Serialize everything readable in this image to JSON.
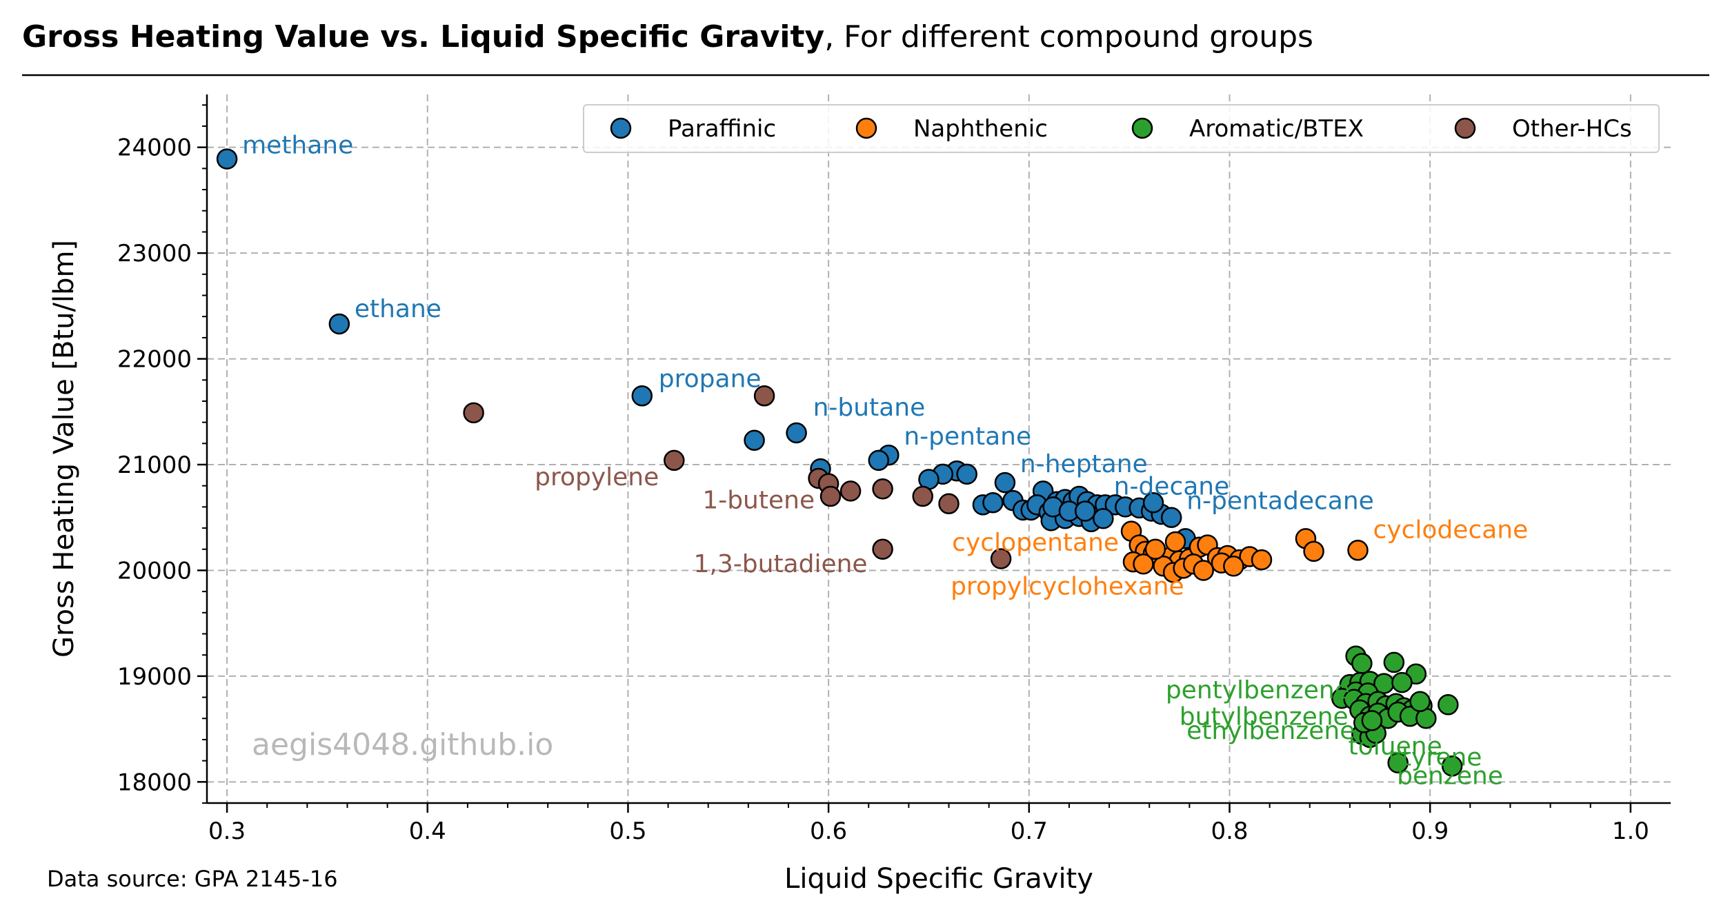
{
  "title": {
    "bold": "Gross Heating Value vs.  Liquid Specific Gravity",
    "normal": ", For different compound groups"
  },
  "source": "Data source: GPA 2145-16",
  "watermark": "aegis4048.github.io",
  "chart_data": {
    "type": "scatter",
    "xlabel": "Liquid Specific Gravity",
    "ylabel": "Gross Heating Value [Btu/lbm]",
    "xlim": [
      0.29,
      1.02
    ],
    "ylim": [
      17800,
      24500
    ],
    "xticks": [
      0.3,
      0.4,
      0.5,
      0.6,
      0.7,
      0.8,
      0.9,
      1.0
    ],
    "xtick_labels": [
      "0.3",
      "0.4",
      "0.5",
      "0.6",
      "0.7",
      "0.8",
      "0.9",
      "1.0"
    ],
    "yticks": [
      18000,
      19000,
      20000,
      21000,
      22000,
      23000,
      24000
    ],
    "ytick_labels": [
      "18000",
      "19000",
      "20000",
      "21000",
      "22000",
      "23000",
      "24000"
    ],
    "grid": true,
    "legend_position": "top-right",
    "series": [
      {
        "name": "Paraffinic",
        "color": "#1f77b4",
        "points": [
          [
            0.3,
            23890
          ],
          [
            0.356,
            22330
          ],
          [
            0.507,
            21650
          ],
          [
            0.584,
            21300
          ],
          [
            0.563,
            21230
          ],
          [
            0.63,
            21090
          ],
          [
            0.625,
            21040
          ],
          [
            0.596,
            20960
          ],
          [
            0.664,
            20940
          ],
          [
            0.657,
            20910
          ],
          [
            0.669,
            20910
          ],
          [
            0.65,
            20860
          ],
          [
            0.688,
            20830
          ],
          [
            0.707,
            20750
          ],
          [
            0.677,
            20620
          ],
          [
            0.682,
            20640
          ],
          [
            0.692,
            20660
          ],
          [
            0.697,
            20570
          ],
          [
            0.701,
            20570
          ],
          [
            0.704,
            20620
          ],
          [
            0.71,
            20550
          ],
          [
            0.714,
            20650
          ],
          [
            0.718,
            20670
          ],
          [
            0.722,
            20650
          ],
          [
            0.725,
            20700
          ],
          [
            0.729,
            20650
          ],
          [
            0.734,
            20620
          ],
          [
            0.738,
            20620
          ],
          [
            0.743,
            20620
          ],
          [
            0.748,
            20600
          ],
          [
            0.755,
            20590
          ],
          [
            0.761,
            20560
          ],
          [
            0.766,
            20530
          ],
          [
            0.771,
            20500
          ],
          [
            0.711,
            20470
          ],
          [
            0.718,
            20490
          ],
          [
            0.725,
            20510
          ],
          [
            0.731,
            20460
          ],
          [
            0.737,
            20490
          ],
          [
            0.762,
            20640
          ],
          [
            0.778,
            20300
          ],
          [
            0.712,
            20600
          ],
          [
            0.72,
            20560
          ],
          [
            0.728,
            20560
          ]
        ]
      },
      {
        "name": "Naphthenic",
        "color": "#ff7f0e",
        "points": [
          [
            0.751,
            20370
          ],
          [
            0.755,
            20240
          ],
          [
            0.758,
            20180
          ],
          [
            0.762,
            20160
          ],
          [
            0.766,
            20100
          ],
          [
            0.771,
            20130
          ],
          [
            0.775,
            20090
          ],
          [
            0.78,
            20110
          ],
          [
            0.785,
            20220
          ],
          [
            0.789,
            20240
          ],
          [
            0.794,
            20120
          ],
          [
            0.799,
            20140
          ],
          [
            0.805,
            20100
          ],
          [
            0.81,
            20130
          ],
          [
            0.816,
            20100
          ],
          [
            0.752,
            20080
          ],
          [
            0.757,
            20060
          ],
          [
            0.767,
            20040
          ],
          [
            0.772,
            19980
          ],
          [
            0.777,
            20020
          ],
          [
            0.782,
            20060
          ],
          [
            0.787,
            20000
          ],
          [
            0.796,
            20070
          ],
          [
            0.773,
            20270
          ],
          [
            0.763,
            20200
          ],
          [
            0.838,
            20300
          ],
          [
            0.842,
            20180
          ],
          [
            0.864,
            20190
          ],
          [
            0.802,
            20040
          ]
        ]
      },
      {
        "name": "Aromatic/BTEX",
        "color": "#2ca02c",
        "points": [
          [
            0.863,
            19190
          ],
          [
            0.866,
            19120
          ],
          [
            0.882,
            19130
          ],
          [
            0.893,
            19020
          ],
          [
            0.86,
            18920
          ],
          [
            0.865,
            18940
          ],
          [
            0.87,
            18950
          ],
          [
            0.877,
            18930
          ],
          [
            0.886,
            18940
          ],
          [
            0.863,
            18850
          ],
          [
            0.869,
            18840
          ],
          [
            0.856,
            18790
          ],
          [
            0.862,
            18780
          ],
          [
            0.868,
            18740
          ],
          [
            0.874,
            18760
          ],
          [
            0.878,
            18720
          ],
          [
            0.883,
            18740
          ],
          [
            0.887,
            18700
          ],
          [
            0.891,
            18680
          ],
          [
            0.896,
            18720
          ],
          [
            0.909,
            18730
          ],
          [
            0.865,
            18680
          ],
          [
            0.87,
            18620
          ],
          [
            0.874,
            18650
          ],
          [
            0.879,
            18600
          ],
          [
            0.884,
            18660
          ],
          [
            0.89,
            18620
          ],
          [
            0.898,
            18600
          ],
          [
            0.866,
            18450
          ],
          [
            0.87,
            18420
          ],
          [
            0.873,
            18460
          ],
          [
            0.867,
            18560
          ],
          [
            0.871,
            18580
          ],
          [
            0.884,
            18180
          ],
          [
            0.911,
            18150
          ],
          [
            0.895,
            18760
          ]
        ]
      },
      {
        "name": "Other-HCs",
        "color": "#8c564b",
        "points": [
          [
            0.423,
            21490
          ],
          [
            0.568,
            21650
          ],
          [
            0.523,
            21040
          ],
          [
            0.595,
            20870
          ],
          [
            0.6,
            20820
          ],
          [
            0.611,
            20750
          ],
          [
            0.627,
            20770
          ],
          [
            0.647,
            20700
          ],
          [
            0.66,
            20630
          ],
          [
            0.601,
            20700
          ],
          [
            0.627,
            20200
          ],
          [
            0.686,
            20110
          ]
        ]
      }
    ],
    "annotations": [
      {
        "text": "methane",
        "x": 0.3,
        "y": 23890,
        "series": "Paraffinic"
      },
      {
        "text": "ethane",
        "x": 0.356,
        "y": 22330,
        "series": "Paraffinic"
      },
      {
        "text": "propane",
        "x": 0.507,
        "y": 21650,
        "series": "Paraffinic"
      },
      {
        "text": "n-butane",
        "x": 0.584,
        "y": 21300,
        "series": "Paraffinic"
      },
      {
        "text": "n-pentane",
        "x": 0.63,
        "y": 21090,
        "series": "Paraffinic"
      },
      {
        "text": "n-heptane",
        "x": 0.688,
        "y": 20830,
        "series": "Paraffinic"
      },
      {
        "text": "n-decane",
        "x": 0.734,
        "y": 20620,
        "series": "Paraffinic"
      },
      {
        "text": "n-pentadecane",
        "x": 0.771,
        "y": 20500,
        "series": "Paraffinic"
      },
      {
        "text": "cyclodecane",
        "x": 0.864,
        "y": 20190,
        "series": "Naphthenic"
      },
      {
        "text": "cyclopentane",
        "x": 0.751,
        "y": 20080,
        "series": "Naphthenic"
      },
      {
        "text": "propylcyclohexane",
        "x": 0.787,
        "y": 20000,
        "series": "Naphthenic"
      },
      {
        "text": "propylene",
        "x": 0.523,
        "y": 21040,
        "series": "Other-HCs"
      },
      {
        "text": "1-butene",
        "x": 0.6,
        "y": 20820,
        "series": "Other-HCs"
      },
      {
        "text": "1,3-butadiene",
        "x": 0.627,
        "y": 20200,
        "series": "Other-HCs"
      },
      {
        "text": "pentylbenzene",
        "x": 0.86,
        "y": 18920,
        "series": "Aromatic/BTEX"
      },
      {
        "text": "butylbenzene",
        "x": 0.862,
        "y": 18780,
        "series": "Aromatic/BTEX"
      },
      {
        "text": "ethylbenzene",
        "x": 0.866,
        "y": 18680,
        "series": "Aromatic/BTEX"
      },
      {
        "text": "toluene",
        "x": 0.884,
        "y": 18180,
        "series": "Aromatic/BTEX"
      },
      {
        "text": "styrene",
        "x": 0.911,
        "y": 18150,
        "series": "Aromatic/BTEX"
      },
      {
        "text": "benzene",
        "x": 0.911,
        "y": 18150,
        "series": "Aromatic/BTEX"
      }
    ]
  }
}
